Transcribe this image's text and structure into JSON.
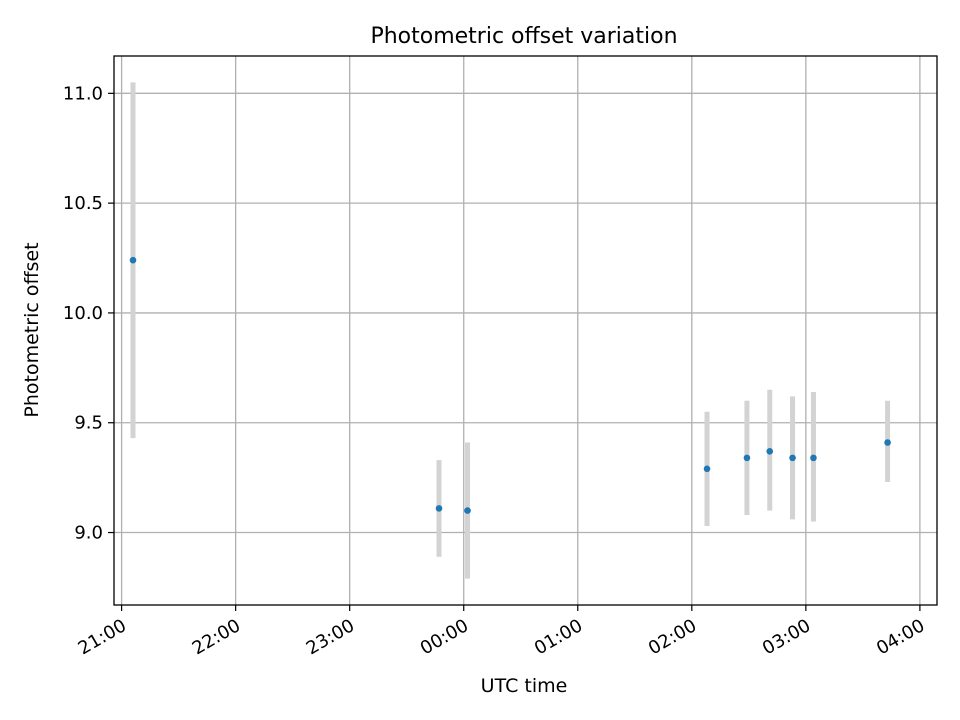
{
  "chart_data": {
    "type": "scatter",
    "title": "Photometric offset variation",
    "xlabel": "UTC time",
    "ylabel": "Photometric offset",
    "x_tick_labels": [
      "21:00",
      "22:00",
      "23:00",
      "00:00",
      "01:00",
      "02:00",
      "03:00",
      "04:00"
    ],
    "y_tick_labels": [
      "9.0",
      "9.5",
      "10.0",
      "10.5",
      "11.0"
    ],
    "y_ticks": [
      9.0,
      9.5,
      10.0,
      10.5,
      11.0
    ],
    "xlim": [
      "20:56",
      "04:09"
    ],
    "ylim": [
      8.67,
      11.17
    ],
    "grid": true,
    "point_color": "#1f77b4",
    "errorbar_color": "#d3d3d3",
    "points": [
      {
        "time": "21:06",
        "offset": 10.24,
        "err_low": 9.43,
        "err_high": 11.05
      },
      {
        "time": "23:47",
        "offset": 9.11,
        "err_low": 8.89,
        "err_high": 9.33
      },
      {
        "time": "00:02",
        "offset": 9.1,
        "err_low": 8.79,
        "err_high": 9.41
      },
      {
        "time": "02:08",
        "offset": 9.29,
        "err_low": 9.03,
        "err_high": 9.55
      },
      {
        "time": "02:29",
        "offset": 9.34,
        "err_low": 9.08,
        "err_high": 9.6
      },
      {
        "time": "02:41",
        "offset": 9.37,
        "err_low": 9.1,
        "err_high": 9.65
      },
      {
        "time": "02:53",
        "offset": 9.34,
        "err_low": 9.06,
        "err_high": 9.62
      },
      {
        "time": "03:04",
        "offset": 9.34,
        "err_low": 9.05,
        "err_high": 9.64
      },
      {
        "time": "03:43",
        "offset": 9.41,
        "err_low": 9.23,
        "err_high": 9.6
      }
    ]
  }
}
